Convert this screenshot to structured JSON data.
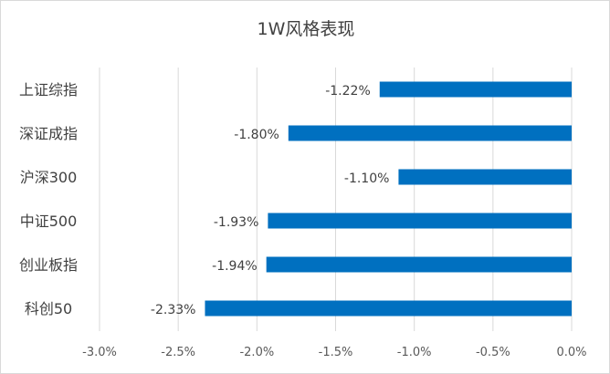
{
  "chart_data": {
    "type": "bar",
    "orientation": "horizontal",
    "title": "1W风格表现",
    "categories": [
      "上证综指",
      "深证成指",
      "沪深300",
      "中证500",
      "创业板指",
      "科创50"
    ],
    "values": [
      -1.22,
      -1.8,
      -1.1,
      -1.93,
      -1.94,
      -2.33
    ],
    "data_labels": [
      "-1.22%",
      "-1.80%",
      "-1.10%",
      "-1.93%",
      "-1.94%",
      "-2.33%"
    ],
    "unit": "%",
    "xlim": [
      -3.0,
      0.0
    ],
    "x_ticks": [
      -3.0,
      -2.5,
      -2.0,
      -1.5,
      -1.0,
      -0.5,
      0.0
    ],
    "x_tick_labels": [
      "-3.0%",
      "-2.5%",
      "-2.0%",
      "-1.5%",
      "-1.0%",
      "-0.5%",
      "0.0%"
    ],
    "grid": true,
    "legend": "none",
    "bar_color": "#0070c0",
    "grid_color": "#d9d9d9"
  }
}
